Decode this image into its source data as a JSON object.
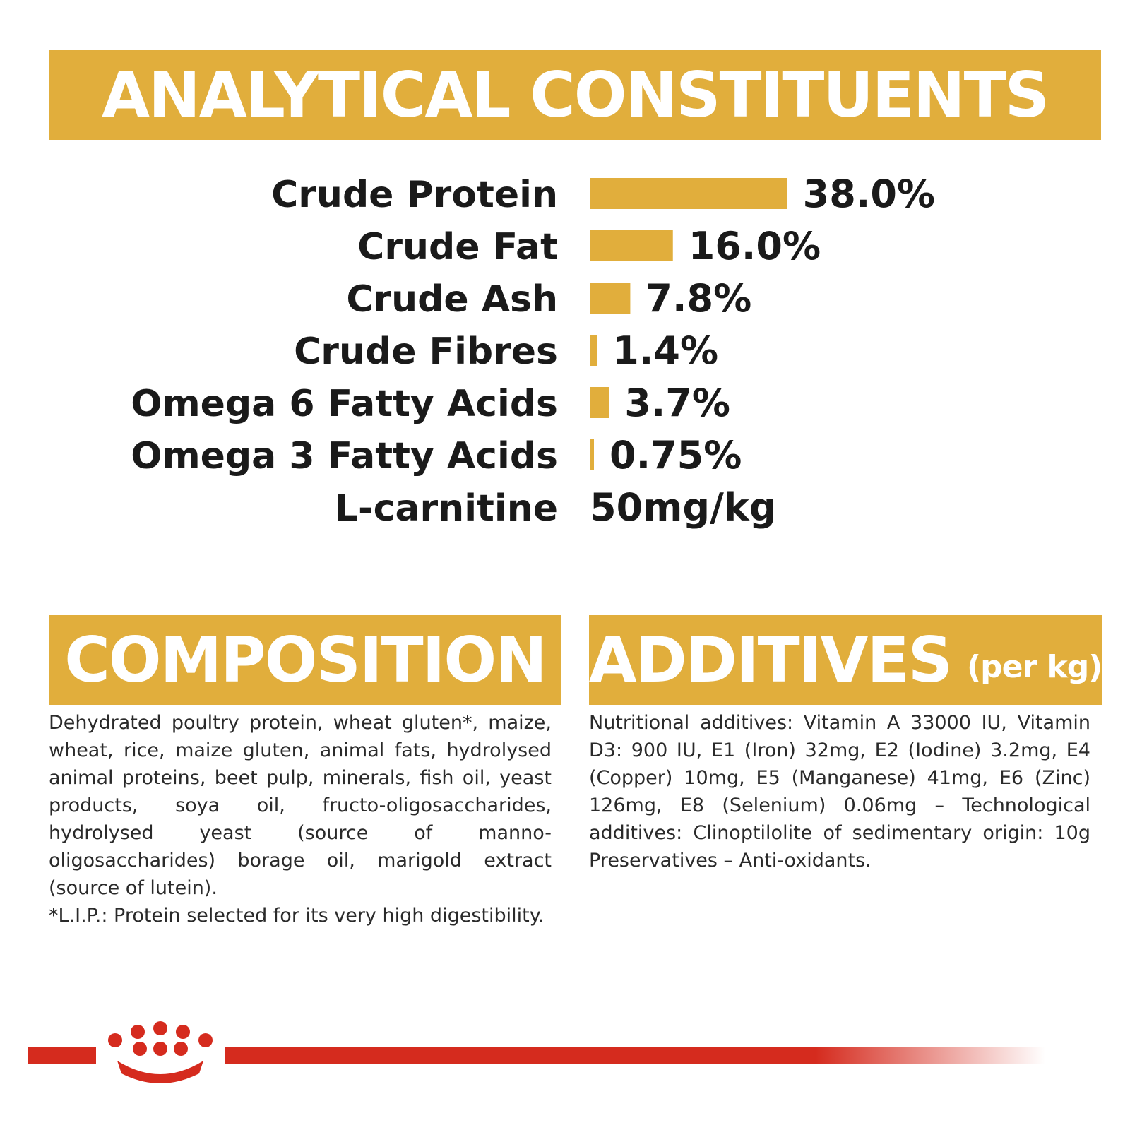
{
  "banners": {
    "analytical": "ANALYTICAL CONSTITUENTS",
    "composition": "COMPOSITION",
    "additives": "ADDITIVES",
    "additives_sub": "(per kg)"
  },
  "chart_data": {
    "type": "bar",
    "orientation": "horizontal",
    "categories": [
      "Crude Protein",
      "Crude Fat",
      "Crude Ash",
      "Crude Fibres",
      "Omega 6 Fatty Acids",
      "Omega 3 Fatty Acids"
    ],
    "values": [
      38.0,
      16.0,
      7.8,
      1.4,
      3.7,
      0.75
    ],
    "value_labels": [
      "38.0%",
      "16.0%",
      "7.8%",
      "1.4%",
      "3.7%",
      "0.75%"
    ],
    "extra_rows": [
      {
        "label": "L-carnitine",
        "value_label": "50mg/kg"
      }
    ],
    "bar_color": "#e1ae3c",
    "title": "",
    "xlabel": "",
    "ylabel": ""
  },
  "composition": {
    "text": "Dehydrated poultry protein, wheat gluten*, maize, wheat, rice, maize gluten, animal fats, hydrolysed animal proteins, beet pulp, minerals, fish oil, yeast products, soya oil, fructo-oligosaccharides, hydrolysed yeast (source of manno-oligosaccharides) borage oil, marigold extract (source of lutein).",
    "note": "*L.I.P.: Protein selected for its very high digestibility."
  },
  "additives": {
    "text": "Nutritional additives: Vitamin A 33000 IU, Vitamin D3: 900 IU, E1 (Iron) 32mg, E2 (Iodine) 3.2mg, E4 (Copper) 10mg, E5 (Manganese) 41mg, E6 (Zinc) 126mg, E8 (Selenium) 0.06mg – Technological additives: Clinoptilolite of sedimentary origin: 10g Preservatives – Anti-oxidants."
  },
  "footer": {
    "brand_color": "#d52b1e",
    "logo_icon": "crown-logo-icon"
  }
}
